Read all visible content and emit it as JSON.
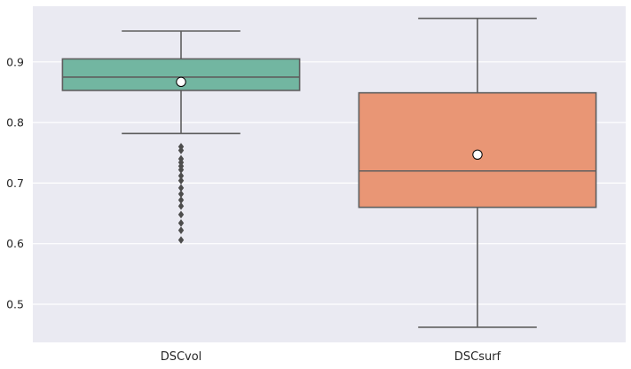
{
  "chart_data": {
    "type": "box",
    "title": "",
    "xlabel": "",
    "ylabel": "",
    "ylim": [
      0.437,
      0.992
    ],
    "yticks": [
      0.5,
      0.6,
      0.7,
      0.8,
      0.9
    ],
    "ytick_labels": [
      "0.5",
      "0.6",
      "0.7",
      "0.8",
      "0.9"
    ],
    "grid": true,
    "legend": "none",
    "background_color": "#EAEAF2",
    "boxes": [
      {
        "category": "DSCvol",
        "color": "#72B6A1",
        "whisker_low": 0.782,
        "q1": 0.853,
        "median": 0.875,
        "q3": 0.905,
        "whisker_high": 0.951,
        "mean": 0.867,
        "outliers": [
          0.76,
          0.754,
          0.74,
          0.734,
          0.728,
          0.722,
          0.712,
          0.704,
          0.692,
          0.682,
          0.672,
          0.662,
          0.648,
          0.634,
          0.622,
          0.606
        ]
      },
      {
        "category": "DSCsurf",
        "color": "#E99675",
        "whisker_low": 0.462,
        "q1": 0.66,
        "median": 0.72,
        "q3": 0.849,
        "whisker_high": 0.972,
        "mean": 0.747,
        "outliers": []
      }
    ]
  }
}
